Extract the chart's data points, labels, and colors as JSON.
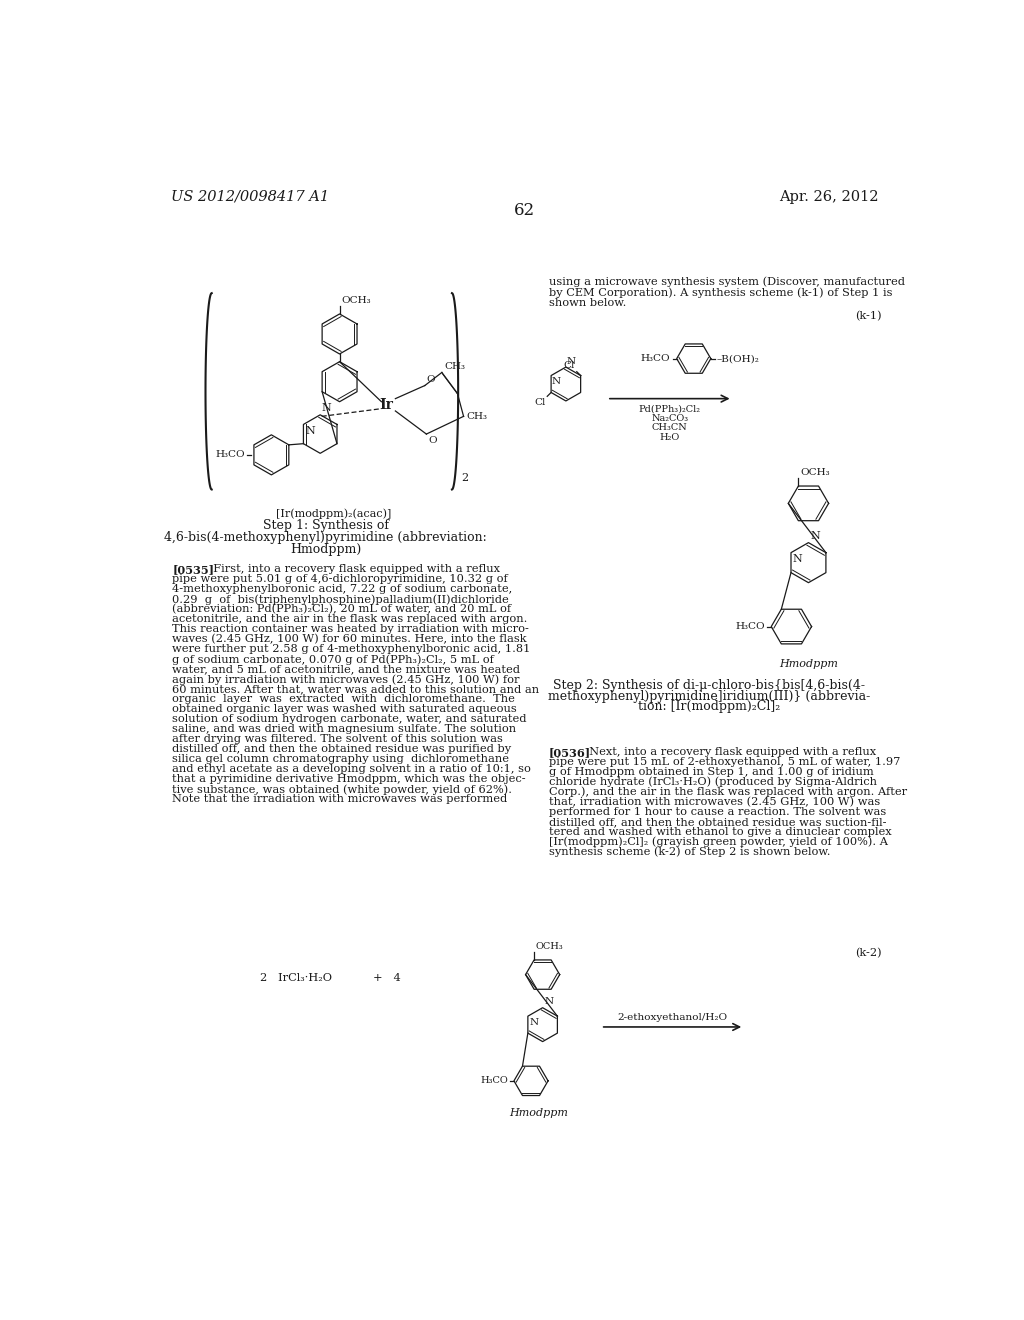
{
  "page_number": "62",
  "patent_number": "US 2012/0098417 A1",
  "patent_date": "Apr. 26, 2012",
  "background_color": "#ffffff",
  "text_color": "#1a1a1a",
  "font_size_header": 10.5,
  "font_size_body": 8.2,
  "font_size_page_num": 12,
  "top_text_right": "using a microwave synthesis system (Discover, manufactured\nby CEM Corporation). A synthesis scheme (k-1) of Step 1 is\nshown below.",
  "step1_title_line1": "Step 1: Synthesis of",
  "step1_title_line2": "4,6-bis(4-methoxyphenyl)pyrimidine (abbreviation:",
  "step1_title_line3": "Hmodppm)",
  "label_k1": "(k-1)",
  "label_k2": "(k-2)",
  "label_ir_complex": "[Ir(modppm)₂(acac)]",
  "reaction_cond1": "Pd(PPh₃)₂Cl₂",
  "reaction_cond2": "Na₂CO₃",
  "reaction_cond3": "CH₃CN",
  "reaction_cond4": "H₂O",
  "label_hmodppm": "Hmodppm",
  "step2_title_line1": "Step 2: Synthesis of di-μ-chloro-bis{bis[4,6-bis(4-",
  "step2_title_line2": "methoxyphenyl)pyrimidine]iridium(III)} (abbrevia-",
  "step2_title_line3": "tion: [Ir(modppm)₂Cl]₂",
  "para535_lines": [
    "[0535]   First, into a recovery flask equipped with a reflux",
    "pipe were put 5.01 g of 4,6-dichloropyrimidine, 10.32 g of",
    "4-methoxyphenylboronic acid, 7.22 g of sodium carbonate,",
    "0.29  g  of  bis(triphenylphosphine)palladium(II)dichloride",
    "(abbreviation: Pd(PPh₃)₂Cl₂), 20 mL of water, and 20 mL of",
    "acetonitrile, and the air in the flask was replaced with argon.",
    "This reaction container was heated by irradiation with micro-",
    "waves (2.45 GHz, 100 W) for 60 minutes. Here, into the flask",
    "were further put 2.58 g of 4-methoxyphenylboronic acid, 1.81",
    "g of sodium carbonate, 0.070 g of Pd(PPh₃)₂Cl₂, 5 mL of",
    "water, and 5 mL of acetonitrile, and the mixture was heated",
    "again by irradiation with microwaves (2.45 GHz, 100 W) for",
    "60 minutes. After that, water was added to this solution and an",
    "organic  layer  was  extracted  with  dichloromethane.  The",
    "obtained organic layer was washed with saturated aqueous",
    "solution of sodium hydrogen carbonate, water, and saturated",
    "saline, and was dried with magnesium sulfate. The solution",
    "after drying was filtered. The solvent of this solution was",
    "distilled off, and then the obtained residue was purified by",
    "silica gel column chromatography using  dichloromethane",
    "and ethyl acetate as a developing solvent in a ratio of 10:1, so",
    "that a pyrimidine derivative Hmodppm, which was the objec-",
    "tive substance, was obtained (white powder, yield of 62%).",
    "Note that the irradiation with microwaves was performed"
  ],
  "para536_lines": [
    "[0536]   Next, into a recovery flask equipped with a reflux",
    "pipe were put 15 mL of 2-ethoxyethanol, 5 mL of water, 1.97",
    "g of Hmodppm obtained in Step 1, and 1.00 g of iridium",
    "chloride hydrate (IrCl₃·H₂O) (produced by Sigma-Aldrich",
    "Corp.), and the air in the flask was replaced with argon. After",
    "that, irradiation with microwaves (2.45 GHz, 100 W) was",
    "performed for 1 hour to cause a reaction. The solvent was",
    "distilled off, and then the obtained residue was suction-fil-",
    "tered and washed with ethanol to give a dinuclear complex",
    "[Ir(modppm)₂Cl]₂ (grayish green powder, yield of 100%). A",
    "synthesis scheme (k-2) of Step 2 is shown below."
  ],
  "bottom_reactant_text": "2   IrCl₃·H₂O   +   4",
  "bottom_arrow_label": "2-ethoxyethanol/H₂O",
  "bottom_hmodppm_label": "Hmodppm"
}
